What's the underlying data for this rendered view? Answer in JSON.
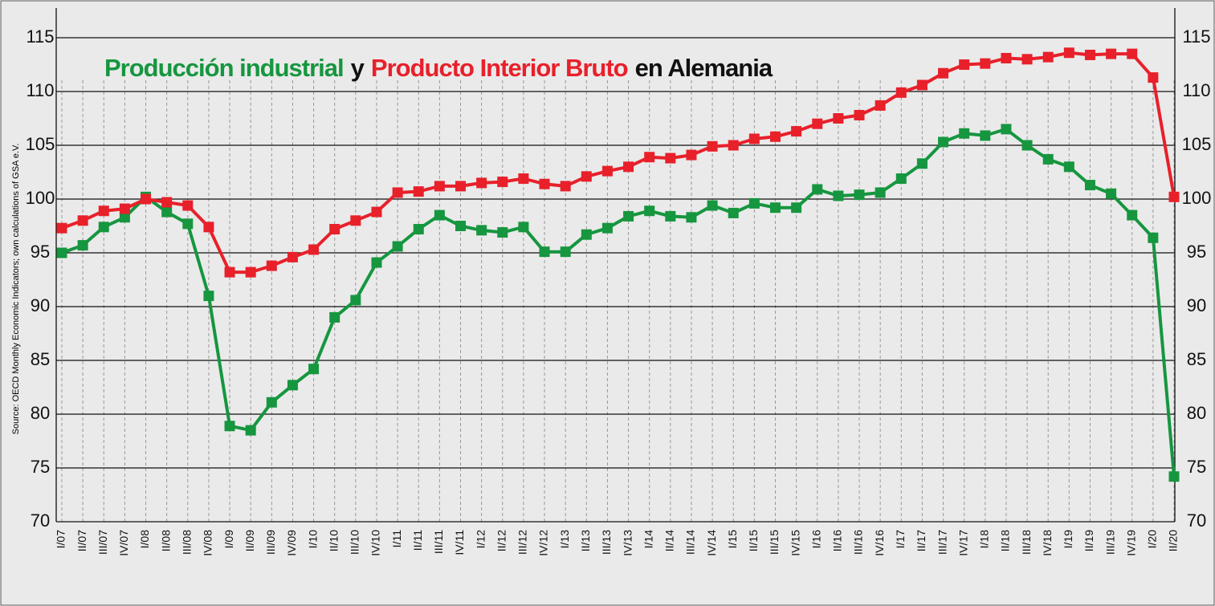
{
  "chart_data": {
    "type": "line",
    "title_parts": [
      "y",
      "en Alemania"
    ],
    "source": "Source: OECD Monthly Economic Indicators; own calculations of GSA e.V.",
    "categories": [
      "I/07",
      "II/07",
      "III/07",
      "IV/07",
      "I/08",
      "II/08",
      "III/08",
      "IV/08",
      "I/09",
      "II/09",
      "III/09",
      "IV/09",
      "I/10",
      "II/10",
      "III/10",
      "IV/10",
      "I/11",
      "II/11",
      "III/11",
      "IV/11",
      "I/12",
      "II/12",
      "III/12",
      "IV/12",
      "I/13",
      "II/13",
      "III/13",
      "IV/13",
      "I/14",
      "II/14",
      "III/14",
      "IV/14",
      "I/15",
      "II/15",
      "III/15",
      "IV/15",
      "I/16",
      "II/16",
      "III/16",
      "IV/16",
      "I/17",
      "II/17",
      "III/17",
      "IV/17",
      "I/18",
      "II/18",
      "III/18",
      "IV/18",
      "I/19",
      "II/19",
      "III/19",
      "IV/19",
      "I/20",
      "II/20"
    ],
    "series": [
      {
        "name": "Producción industrial",
        "color": "#16963f",
        "values": [
          95.0,
          95.7,
          97.4,
          98.3,
          100.2,
          98.8,
          97.7,
          91.0,
          78.9,
          78.5,
          81.1,
          82.7,
          84.2,
          89.0,
          90.6,
          94.1,
          95.6,
          97.2,
          98.5,
          97.5,
          97.1,
          96.9,
          97.4,
          95.1,
          95.1,
          96.7,
          97.3,
          98.4,
          98.9,
          98.4,
          98.3,
          99.4,
          98.7,
          99.6,
          99.2,
          99.2,
          100.9,
          100.3,
          100.4,
          100.6,
          101.9,
          103.3,
          105.3,
          106.1,
          105.9,
          106.5,
          105.0,
          103.7,
          103.0,
          101.3,
          100.5,
          98.5,
          96.4,
          74.2
        ]
      },
      {
        "name": "Producto Interior Bruto",
        "color": "#e8202a",
        "values": [
          97.3,
          98.0,
          98.9,
          99.1,
          100.0,
          99.7,
          99.4,
          97.4,
          93.2,
          93.2,
          93.8,
          94.6,
          95.3,
          97.2,
          98.0,
          98.8,
          100.6,
          100.7,
          101.2,
          101.2,
          101.5,
          101.6,
          101.9,
          101.4,
          101.2,
          102.1,
          102.6,
          103.0,
          103.9,
          103.8,
          104.1,
          104.9,
          105.0,
          105.6,
          105.8,
          106.3,
          107.0,
          107.5,
          107.8,
          108.7,
          109.9,
          110.6,
          111.7,
          112.5,
          112.6,
          113.1,
          113.0,
          113.2,
          113.6,
          113.4,
          113.5,
          113.5,
          111.3,
          100.2
        ]
      }
    ],
    "ylim": [
      70,
      115
    ],
    "yticks": [
      70,
      75,
      80,
      85,
      90,
      95,
      100,
      105,
      110,
      115
    ],
    "grid": true
  }
}
